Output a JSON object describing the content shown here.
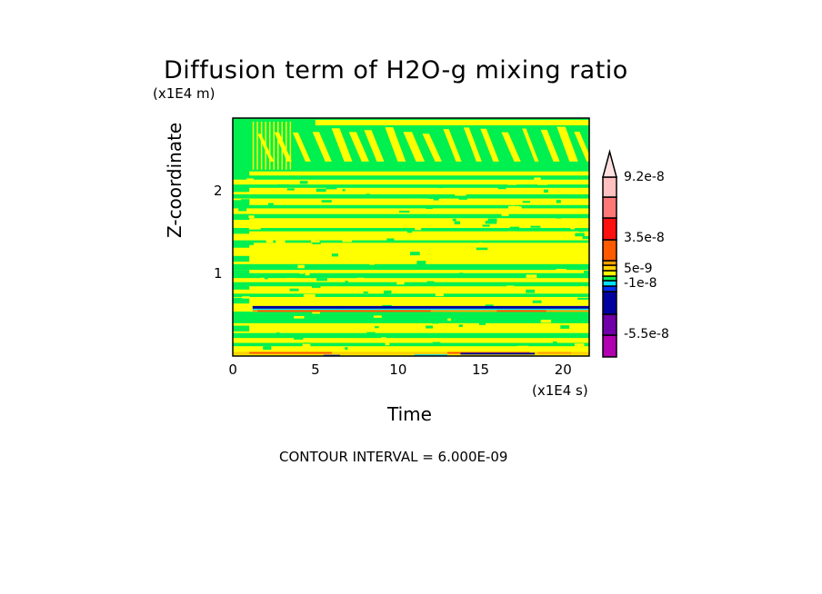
{
  "chart_data": {
    "type": "heatmap",
    "title": "Diffusion term of H2O-g mixing ratio",
    "xlabel": "Time",
    "ylabel": "Z-coordinate",
    "x_unit_label": "(x1E4 s)",
    "y_unit_label": "(x1E4 m)",
    "xlim": [
      0,
      21.6
    ],
    "ylim": [
      0,
      2.9
    ],
    "x_ticks": [
      {
        "value": 0,
        "label": "0"
      },
      {
        "value": 5,
        "label": "5"
      },
      {
        "value": 10,
        "label": "10"
      },
      {
        "value": 15,
        "label": "15"
      },
      {
        "value": 20,
        "label": "20"
      }
    ],
    "y_ticks": [
      {
        "value": 1,
        "label": "1"
      },
      {
        "value": 2,
        "label": "2"
      }
    ],
    "contour_interval_text": "CONTOUR INTERVAL = 6.000E-09",
    "colorbar": {
      "labels": [
        {
          "value": 9.2e-08,
          "label": "9.2e-8"
        },
        {
          "value": 3.5e-08,
          "label": "3.5e-8"
        },
        {
          "value": 5e-09,
          "label": "5e-9"
        },
        {
          "value": -1e-08,
          "label": "-1e-8"
        },
        {
          "value": -5.5e-08,
          "label": "-5.5e-8"
        }
      ],
      "segments_bottom_to_top": [
        {
          "color": "#b000b0"
        },
        {
          "color": "#7000a8"
        },
        {
          "color": "#0000a0"
        },
        {
          "color": "#0030ff"
        },
        {
          "color": "#00e0ff"
        },
        {
          "color": "#00f050"
        },
        {
          "color": "#ffff00"
        },
        {
          "color": "#ffd000"
        },
        {
          "color": "#ffa000"
        },
        {
          "color": "#ff5a00"
        },
        {
          "color": "#ff1010"
        },
        {
          "color": "#ff7878"
        },
        {
          "color": "#ffc0c0"
        }
      ],
      "arrow_color": "#ffe0e0"
    },
    "field_description": {
      "dominant_colors": [
        "#ffff00",
        "#00f050"
      ],
      "bands": [
        {
          "z_from": 2.25,
          "z_to": 2.9,
          "pattern": "tilted stripes",
          "color": "#00f050"
        },
        {
          "z_from": 0.6,
          "z_to": 2.25,
          "pattern": "horizontal layers",
          "color": "#00f050"
        },
        {
          "z_from": 0.58,
          "z_to": 0.62,
          "pattern": "thin negative line",
          "color": "#0000a0"
        },
        {
          "z_from": 0.0,
          "z_to": 0.05,
          "pattern": "near-surface extremes",
          "color": "#ff5a00"
        }
      ]
    }
  }
}
